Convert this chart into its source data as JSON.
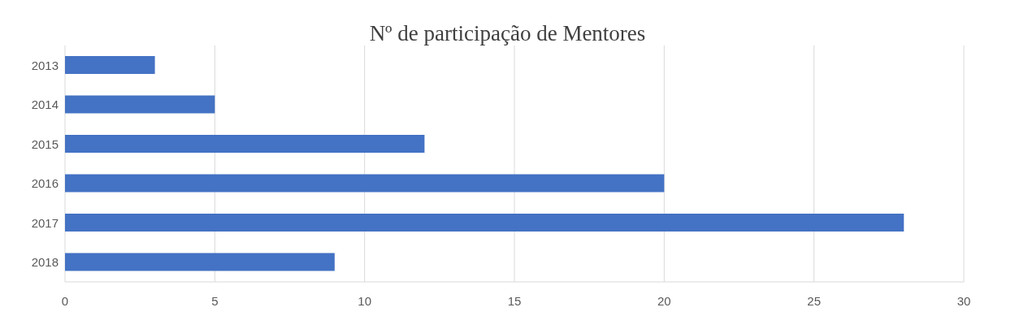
{
  "chart_data": {
    "type": "bar",
    "orientation": "horizontal",
    "title": "Nº de participação de Mentores",
    "categories": [
      "2013",
      "2014",
      "2015",
      "2016",
      "2017",
      "2018"
    ],
    "values": [
      3,
      5,
      12,
      20,
      28,
      9
    ],
    "color": "#4472c4",
    "xlim": [
      0,
      30
    ],
    "xticks": [
      0,
      5,
      10,
      15,
      20,
      25,
      30
    ],
    "grid": "x"
  }
}
